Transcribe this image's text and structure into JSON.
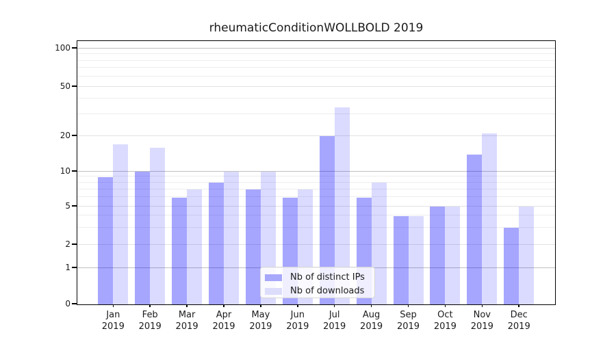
{
  "chart_data": {
    "type": "bar",
    "title": "rheumaticConditionWOLLBOLD 2019",
    "categories": [
      "Jan 2019",
      "Feb 2019",
      "Mar 2019",
      "Apr 2019",
      "May 2019",
      "Jun 2019",
      "Jul 2019",
      "Aug 2019",
      "Sep 2019",
      "Oct 2019",
      "Nov 2019",
      "Dec 2019"
    ],
    "x_tick_months": [
      "Jan",
      "Feb",
      "Mar",
      "Apr",
      "May",
      "Jun",
      "Jul",
      "Aug",
      "Sep",
      "Oct",
      "Nov",
      "Dec"
    ],
    "x_tick_year": "2019",
    "series": [
      {
        "key": "distinct-ips",
        "name": "Nb of distinct IPs",
        "color": "rgba(0,0,255,0.35)",
        "color_hex": "#a7a7fb",
        "values": [
          9,
          10,
          6,
          8,
          7,
          6,
          20,
          6,
          4,
          5,
          14,
          3
        ]
      },
      {
        "key": "downloads",
        "name": "Nb of downloads",
        "color": "rgba(0,0,255,0.14)",
        "color_hex": "#dcdcfb",
        "values": [
          17,
          16,
          7,
          10,
          10,
          7,
          34,
          8,
          4,
          5,
          21,
          5
        ]
      }
    ],
    "y_axis": {
      "ticks": [
        0,
        1,
        2,
        5,
        10,
        20,
        50,
        100
      ],
      "minor_gridlines": [
        3,
        4,
        6,
        7,
        8,
        9,
        30,
        40,
        60,
        70,
        80,
        90
      ],
      "scale": "log above 1, linear between 0 and 1",
      "ylim": [
        0,
        115
      ]
    },
    "grid": true,
    "legend": {
      "position": "lower center"
    }
  }
}
